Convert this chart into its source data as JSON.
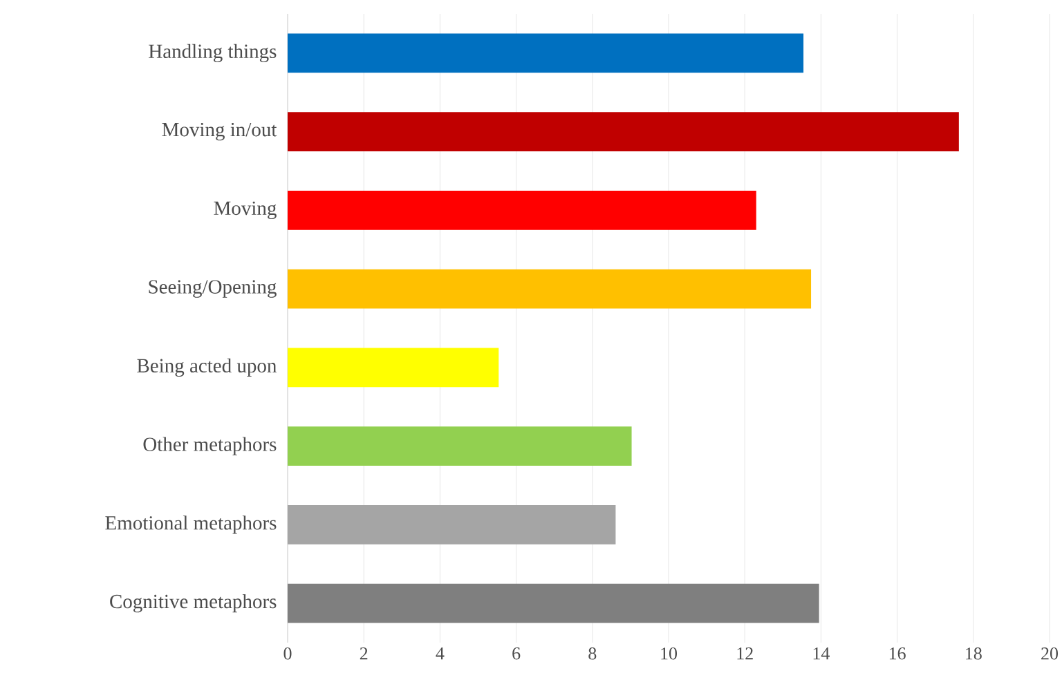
{
  "chart_data": {
    "type": "bar",
    "orientation": "horizontal",
    "categories": [
      "Handling things",
      "Moving in/out",
      "Moving",
      "Seeing/Opening",
      "Being acted upon",
      "Other metaphors",
      "Emotional metaphors",
      "Cognitive metaphors"
    ],
    "values": [
      13.54,
      17.62,
      12.3,
      13.74,
      5.54,
      9.03,
      8.61,
      13.95
    ],
    "colors": [
      "#0070c0",
      "#c00000",
      "#ff0000",
      "#ffc000",
      "#ffff00",
      "#92d050",
      "#a5a5a5",
      "#7f7f7f"
    ],
    "xlim": [
      0,
      20
    ],
    "xticks": [
      0,
      2,
      4,
      6,
      8,
      10,
      12,
      14,
      16,
      18,
      20
    ],
    "grid": "x"
  }
}
